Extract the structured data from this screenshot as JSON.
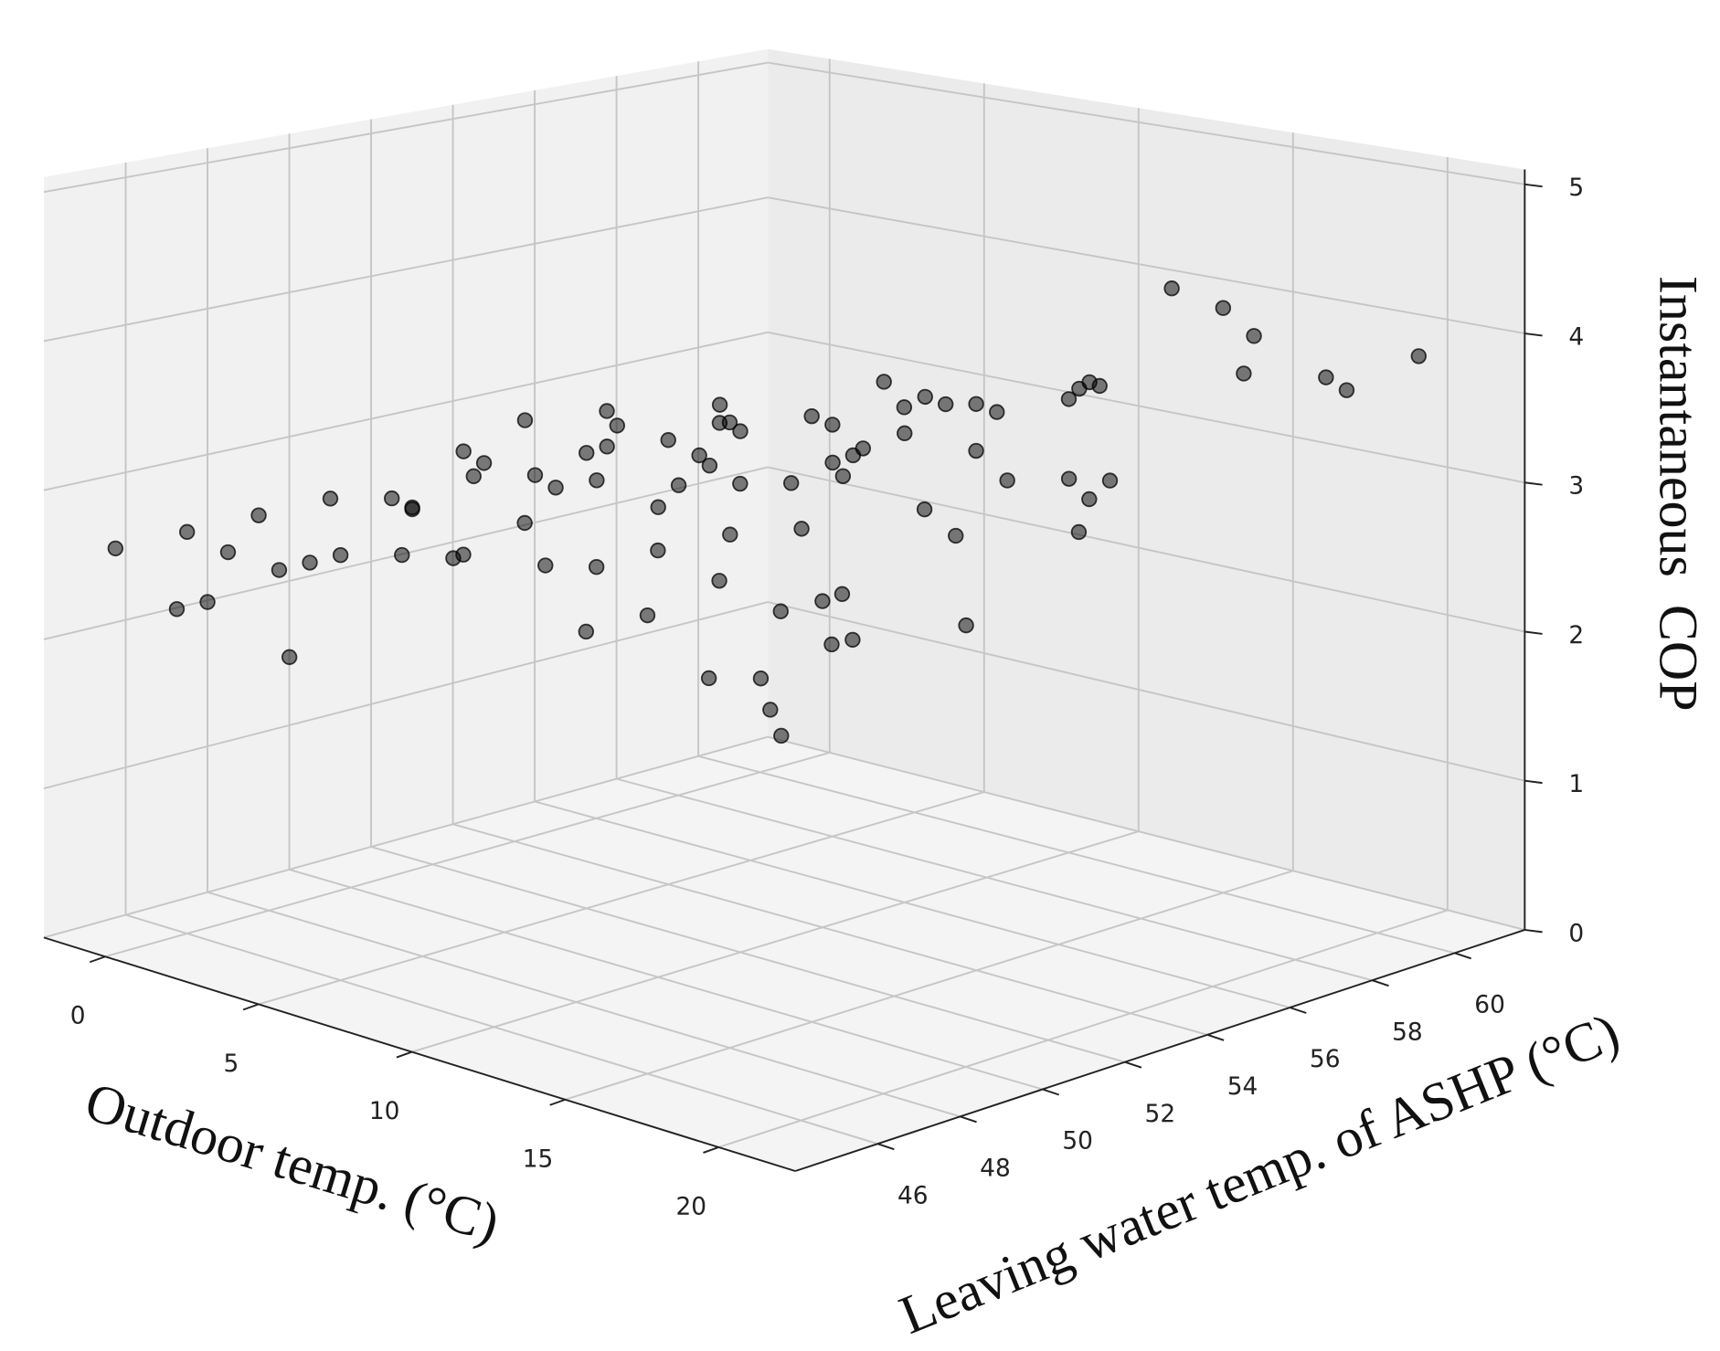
{
  "chart_data": {
    "type": "scatter3d",
    "xlabel": "Outdoor temp. (°C)",
    "ylabel": "Leaving water temp. of ASHP (°C)",
    "zlabel": "Instantaneous  COP",
    "xlim": [
      -2,
      22.5
    ],
    "ylim": [
      44,
      61.7
    ],
    "zlim": [
      0,
      5.1
    ],
    "xticks": [
      0,
      5,
      10,
      15,
      20
    ],
    "yticks": [
      46,
      48,
      50,
      52,
      54,
      56,
      58,
      60
    ],
    "zticks": [
      0,
      1,
      2,
      3,
      4,
      5
    ],
    "grid": true,
    "color": "#000000",
    "x": [
      -1,
      0,
      1,
      0,
      2,
      1,
      3,
      2,
      4,
      2,
      5,
      4,
      6,
      5,
      7,
      6,
      8,
      7,
      9,
      8,
      10,
      9,
      11,
      10,
      12,
      11,
      13,
      12,
      14,
      13,
      15,
      14,
      16,
      15,
      17,
      16,
      18,
      17,
      19,
      18,
      20,
      19,
      21,
      20,
      3,
      5,
      7,
      9,
      11,
      13,
      15,
      17,
      19,
      21,
      4,
      6,
      8,
      10,
      12,
      14,
      16,
      18,
      20,
      2,
      10,
      18,
      12,
      14,
      4,
      6,
      8,
      10,
      12,
      14,
      16,
      18,
      20,
      5,
      9,
      13,
      17,
      21,
      7,
      11,
      15,
      19,
      3,
      20,
      16,
      12
    ],
    "y": [
      45,
      46,
      45,
      47,
      45,
      47,
      46,
      48,
      46,
      47,
      46,
      48,
      47,
      49,
      46,
      48,
      47,
      49,
      46,
      49,
      47,
      48,
      46,
      49,
      47,
      48,
      46,
      49,
      47,
      48,
      46,
      49,
      47,
      48,
      46,
      49,
      47,
      48,
      46,
      49,
      47,
      48,
      46,
      49,
      51,
      52,
      51,
      52,
      51,
      52,
      51,
      52,
      51,
      52,
      53,
      54,
      53,
      54,
      53,
      54,
      53,
      54,
      53,
      50,
      50,
      50,
      51,
      50,
      56,
      55,
      57,
      56,
      55,
      57,
      56,
      55,
      57,
      58,
      59,
      58,
      59,
      58,
      60,
      60,
      60,
      60,
      59,
      61,
      58,
      57
    ],
    "z": [
      2.6,
      2.7,
      2.3,
      2.5,
      2.4,
      2.8,
      2.6,
      2.9,
      2.7,
      1.9,
      2.8,
      3.0,
      3.1,
      3.3,
      2.9,
      2.7,
      3.4,
      3.6,
      3.0,
      3.2,
      3.5,
      2.8,
      3.3,
      3.7,
      3.0,
      3.9,
      2.7,
      3.4,
      3.2,
      3.8,
      2.9,
      3.5,
      3.1,
      4.0,
      2.6,
      3.3,
      3.0,
      3.7,
      2.5,
      3.9,
      3.2,
      2.8,
      3.0,
      3.6,
      3.0,
      3.1,
      3.3,
      3.2,
      2.9,
      3.4,
      3.6,
      3.1,
      3.8,
      3.3,
      2.8,
      3.0,
      3.5,
      2.2,
      3.2,
      3.7,
      2.4,
      3.9,
      3.4,
      2.7,
      3.1,
      4.1,
      2.0,
      1.8,
      3.0,
      3.1,
      3.4,
      3.2,
      3.6,
      3.0,
      3.8,
      3.3,
      4.2,
      2.9,
      3.1,
      3.5,
      3.7,
      3.9,
      3.0,
      3.3,
      4.0,
      3.6,
      2.8,
      3.8,
      4.3,
      2.9
    ]
  }
}
